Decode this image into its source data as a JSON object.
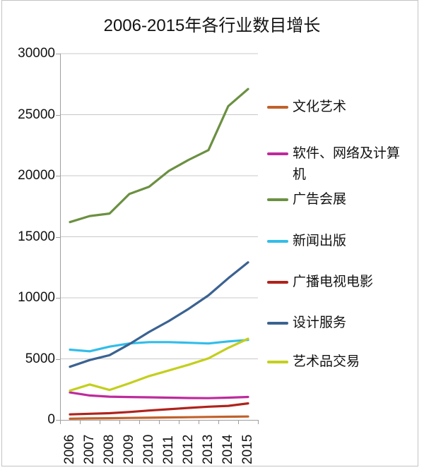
{
  "title": "2006-2015年各行业数目增长",
  "chart_data": {
    "type": "line",
    "categories": [
      "2006",
      "2007",
      "2008",
      "2009",
      "2010",
      "2011",
      "2012",
      "2013",
      "2014",
      "2015"
    ],
    "series": [
      {
        "key": "culture-art",
        "name": "文化艺术",
        "color": "#C0612B",
        "values": [
          100,
          120,
          140,
          160,
          180,
          200,
          220,
          240,
          260,
          280
        ]
      },
      {
        "key": "software-network-computer",
        "name": "软件、网络及计算机",
        "color": "#BE2B9C",
        "values": [
          2250,
          2000,
          1900,
          1870,
          1850,
          1820,
          1790,
          1780,
          1820,
          1880
        ]
      },
      {
        "key": "advertising-exhibition",
        "name": "广告会展",
        "color": "#6B9041",
        "values": [
          16200,
          16700,
          16900,
          18500,
          19100,
          20400,
          21300,
          22100,
          25700,
          27100
        ]
      },
      {
        "key": "news-publishing",
        "name": "新闻出版",
        "color": "#32BDE9",
        "values": [
          5750,
          5620,
          6000,
          6260,
          6370,
          6370,
          6320,
          6260,
          6430,
          6550
        ]
      },
      {
        "key": "radio-tv-film",
        "name": "广播电视电影",
        "color": "#AF231C",
        "values": [
          450,
          500,
          550,
          650,
          770,
          870,
          980,
          1080,
          1150,
          1350
        ]
      },
      {
        "key": "design-services",
        "name": "设计服务",
        "color": "#3B6291",
        "values": [
          4350,
          4900,
          5300,
          6200,
          7200,
          8100,
          9100,
          10200,
          11600,
          12900
        ]
      },
      {
        "key": "art-trading",
        "name": "艺术品交易",
        "color": "#C3CF1C",
        "values": [
          2400,
          2900,
          2450,
          3000,
          3590,
          4050,
          4520,
          5040,
          5900,
          6650
        ]
      }
    ],
    "ylim": [
      0,
      30000
    ],
    "ytick_interval": 5000,
    "yticks": [
      "0",
      "5000",
      "10000",
      "15000",
      "20000",
      "25000",
      "30000"
    ],
    "grid": true,
    "legend_position": "right",
    "gridline_color": "#C8C8C8",
    "axis_color": "#9E9E9E"
  }
}
